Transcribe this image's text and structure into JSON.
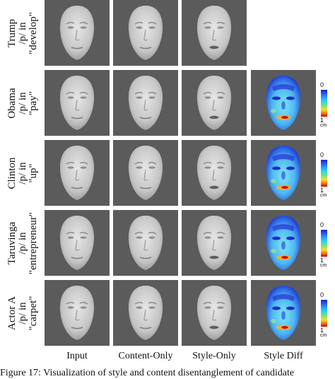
{
  "columns": [
    "Input",
    "Content-Only",
    "Style-Only",
    "Style Diff"
  ],
  "rows": [
    {
      "label_lines": [
        "Trump",
        "/p/ in",
        "\"develop\""
      ],
      "has_style_diff": false
    },
    {
      "label_lines": [
        "Obama",
        "/p/ in",
        "\"pay\""
      ],
      "has_style_diff": true
    },
    {
      "label_lines": [
        "Clinton",
        "/p/ in",
        "\"up\""
      ],
      "has_style_diff": true
    },
    {
      "label_lines": [
        "Taruvinga",
        "/p/ in",
        "\"entrepreneur\""
      ],
      "has_style_diff": true
    },
    {
      "label_lines": [
        "Actor A",
        "/p/ in",
        "\"carpet\""
      ],
      "has_style_diff": true
    }
  ],
  "scale": {
    "top": "0",
    "bottom": "1",
    "unit": "cm"
  },
  "caption": "Figure 17: Visualization of style and content disentanglement of candidate"
}
